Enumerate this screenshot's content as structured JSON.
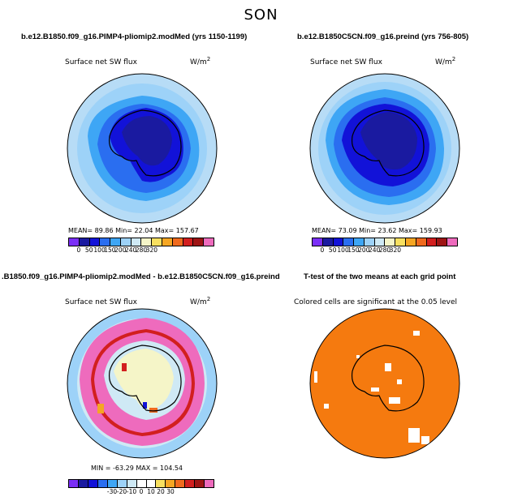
{
  "figure": {
    "title": "SON"
  },
  "panels": [
    {
      "title": "b.e12.B1850.f09_g16.PIMP4-pliomip2.modMed (yrs 1150-1199)",
      "variable": "Surface net SW flux",
      "units": "W/m",
      "units_exp": "2",
      "stats": "MEAN=   89.86   Min=   22.04   Max=  157.67",
      "colorbar_ticks": [
        "0",
        "50",
        "100",
        "150",
        "200",
        "240",
        "280",
        "320"
      ]
    },
    {
      "title": "b.e12.B1850C5CN.f09_g16.preind (yrs 756-805)",
      "variable": "Surface net SW flux",
      "units": "W/m",
      "units_exp": "2",
      "stats": "MEAN=   73.09   Min=   23.62   Max=  159.93",
      "colorbar_ticks": [
        "0",
        "50",
        "100",
        "150",
        "200",
        "240",
        "280",
        "320"
      ]
    },
    {
      "title": ".B1850.f09_g16.PIMP4-pliomip2.modMed - b.e12.B1850C5CN.f09_g16.preind",
      "variable": "Surface net SW flux",
      "units": "W/m",
      "units_exp": "2",
      "stats": "MIN = -63.29  MAX = 104.54",
      "colorbar_ticks": [
        "-30",
        "-20",
        "-10",
        "0",
        "10",
        "20",
        "30"
      ]
    },
    {
      "title": "T-test of the two means at each grid point",
      "subtitle": "Colored cells are significant at the 0.05 level"
    }
  ],
  "colors": {
    "abs_scale": [
      "#7b2ff7",
      "#1a1aa0",
      "#1212d8",
      "#2a6ef0",
      "#3ea6f5",
      "#9dd2f8",
      "#cfe9f5",
      "#f5f5c8",
      "#f8e060",
      "#f5a623",
      "#f06a1e",
      "#d21f1f",
      "#9e1414",
      "#ee6bbd"
    ],
    "diff_scale": [
      "#7b2ff7",
      "#1a1aa0",
      "#1212d8",
      "#2a6ef0",
      "#3ea6f5",
      "#9dd2f8",
      "#cfe9f5",
      "#ffffff",
      "#ffffff",
      "#f8e060",
      "#f5a623",
      "#f06a1e",
      "#d21f1f",
      "#9e1414",
      "#ee6bbd"
    ],
    "significant": "#f57a0f"
  }
}
